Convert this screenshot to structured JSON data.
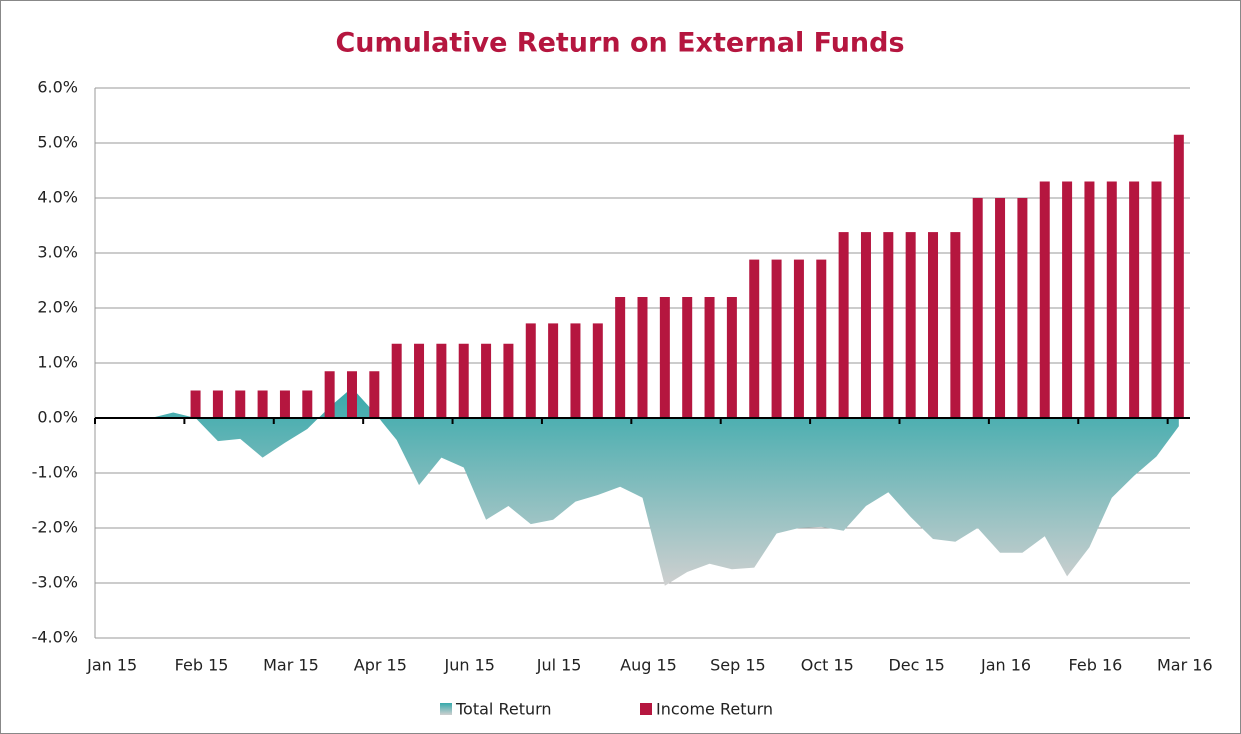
{
  "chart_data": {
    "type": "bar_area",
    "title": "Cumulative Return on External Funds",
    "categories": [
      "Jan 15",
      null,
      null,
      null,
      "Feb 15",
      null,
      null,
      null,
      "Mar 15",
      null,
      null,
      null,
      "Apr 15",
      null,
      null,
      null,
      "Jun 15",
      null,
      null,
      null,
      "Jul 15",
      null,
      null,
      null,
      "Aug 15",
      null,
      null,
      null,
      "Sep 15",
      null,
      null,
      null,
      "Oct 15",
      null,
      null,
      null,
      "Dec 15",
      null,
      null,
      null,
      "Jan 16",
      null,
      null,
      null,
      "Feb 16",
      null,
      null,
      null,
      "Mar 16"
    ],
    "series": [
      {
        "name": "Total Return",
        "type": "area",
        "color": "#36a9ab",
        "values": [
          0,
          0,
          0,
          0.1,
          0,
          -0.42,
          -0.38,
          -0.72,
          -0.45,
          -0.2,
          0.2,
          0.55,
          0.1,
          -0.4,
          -1.22,
          -0.72,
          -0.9,
          -1.85,
          -1.6,
          -1.93,
          -1.85,
          -1.52,
          -1.4,
          -1.25,
          -1.45,
          -3.05,
          -2.8,
          -2.65,
          -2.75,
          -2.72,
          -2.1,
          -2.0,
          -1.98,
          -2.05,
          -1.6,
          -1.35,
          -1.8,
          -2.2,
          -2.25,
          -2.0,
          -2.45,
          -2.45,
          -2.15,
          -2.88,
          -2.35,
          -1.45,
          -1.05,
          -0.7,
          -0.15
        ]
      },
      {
        "name": "Income Return",
        "type": "bar",
        "color": "#b5163f",
        "values": [
          null,
          null,
          null,
          null,
          0.5,
          0.5,
          0.5,
          0.5,
          0.5,
          0.5,
          0.85,
          0.85,
          0.85,
          1.35,
          1.35,
          1.35,
          1.35,
          1.35,
          1.35,
          1.72,
          1.72,
          1.72,
          1.72,
          2.2,
          2.2,
          2.2,
          2.2,
          2.2,
          2.2,
          2.88,
          2.88,
          2.88,
          2.88,
          3.38,
          3.38,
          3.38,
          3.38,
          3.38,
          3.38,
          4.0,
          4.0,
          4.0,
          4.3,
          4.3,
          4.3,
          4.3,
          4.3,
          4.3,
          5.15
        ]
      }
    ],
    "ylim": [
      -4,
      6
    ],
    "yticks": [
      {
        "value": -4,
        "label": "-4.0%"
      },
      {
        "value": -3,
        "label": "-3.0%"
      },
      {
        "value": -2,
        "label": "-2.0%"
      },
      {
        "value": -1,
        "label": "-1.0%"
      },
      {
        "value": 0,
        "label": "0.0%"
      },
      {
        "value": 1,
        "label": "1.0%"
      },
      {
        "value": 2,
        "label": "2.0%"
      },
      {
        "value": 3,
        "label": "3.0%"
      },
      {
        "value": 4,
        "label": "4.0%"
      },
      {
        "value": 5,
        "label": "5.0%"
      },
      {
        "value": 6,
        "label": "6.0%"
      }
    ],
    "grid": true,
    "legend": "bottom"
  }
}
